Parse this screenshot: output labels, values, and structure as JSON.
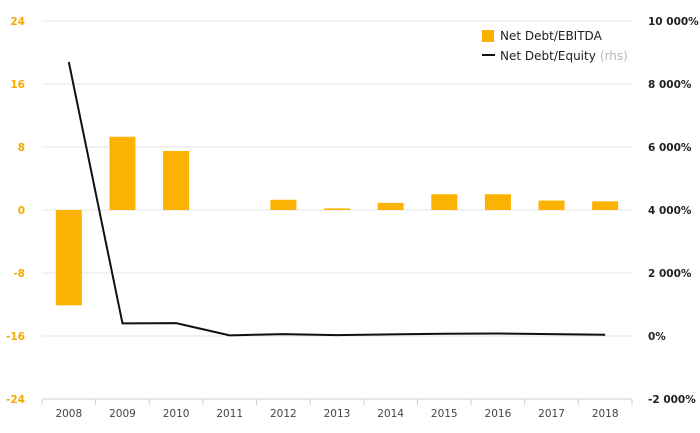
{
  "chart_data": {
    "type": "bar",
    "categories": [
      "2008",
      "2009",
      "2010",
      "2011",
      "2012",
      "2013",
      "2014",
      "2015",
      "2016",
      "2017",
      "2018"
    ],
    "series": [
      {
        "name": "Net Debt/EBITDA",
        "type": "bar",
        "axis": "left",
        "color": "#fbb200",
        "values": [
          -12.1,
          9.3,
          7.5,
          0,
          1.3,
          0.2,
          0.9,
          2.0,
          2.0,
          1.2,
          1.1
        ]
      },
      {
        "name": "Net Debt/Equity",
        "axis_note": "(rhs)",
        "type": "line",
        "axis": "right",
        "color": "#111111",
        "values": [
          8700,
          400,
          410,
          20,
          60,
          30,
          50,
          70,
          80,
          60,
          40
        ]
      }
    ],
    "y_left": {
      "ylim": [
        -24,
        24
      ],
      "ticks": [
        "24",
        "16",
        "8",
        "0",
        "-8",
        "-16",
        "-24"
      ],
      "color": "#f2a900"
    },
    "y_right": {
      "ylim": [
        -2000,
        10000
      ],
      "ticks": [
        "10 000%",
        "8 000%",
        "6 000%",
        "4 000%",
        "2 000%",
        "0%",
        "-2 000%"
      ]
    },
    "grid": true,
    "legend": "top-right",
    "title": "",
    "xlabel": "",
    "ylabel": ""
  }
}
